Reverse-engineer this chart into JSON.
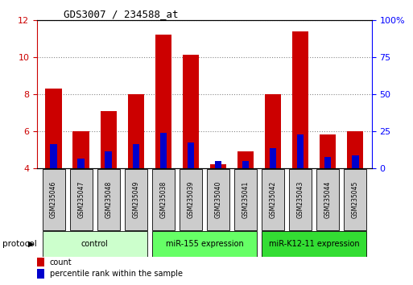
{
  "title": "GDS3007 / 234588_at",
  "samples": [
    "GSM235046",
    "GSM235047",
    "GSM235048",
    "GSM235049",
    "GSM235038",
    "GSM235039",
    "GSM235040",
    "GSM235041",
    "GSM235042",
    "GSM235043",
    "GSM235044",
    "GSM235045"
  ],
  "count_values": [
    8.3,
    6.0,
    7.1,
    8.0,
    11.2,
    10.1,
    4.2,
    4.9,
    8.0,
    11.4,
    5.8,
    6.0
  ],
  "percentile_values": [
    5.3,
    4.5,
    4.9,
    5.3,
    5.9,
    5.4,
    4.4,
    4.4,
    5.1,
    5.8,
    4.6,
    4.7
  ],
  "groups": [
    {
      "label": "control",
      "start": 0,
      "end": 3,
      "color": "#ccffcc"
    },
    {
      "label": "miR-155 expression",
      "start": 4,
      "end": 7,
      "color": "#66ff66"
    },
    {
      "label": "miR-K12-11 expression",
      "start": 8,
      "end": 11,
      "color": "#33dd33"
    }
  ],
  "ylim_left": [
    4,
    12
  ],
  "ylim_right": [
    0,
    100
  ],
  "yticks_left": [
    4,
    6,
    8,
    10,
    12
  ],
  "yticks_right": [
    0,
    25,
    50,
    75,
    100
  ],
  "yticklabels_right": [
    "0",
    "25",
    "50",
    "75",
    "100%"
  ],
  "count_color": "#cc0000",
  "percentile_color": "#0000cc",
  "bar_width": 0.6,
  "blue_bar_width": 0.25,
  "grid_color": "#888888",
  "sample_box_color": "#cccccc",
  "protocol_label": "protocol"
}
